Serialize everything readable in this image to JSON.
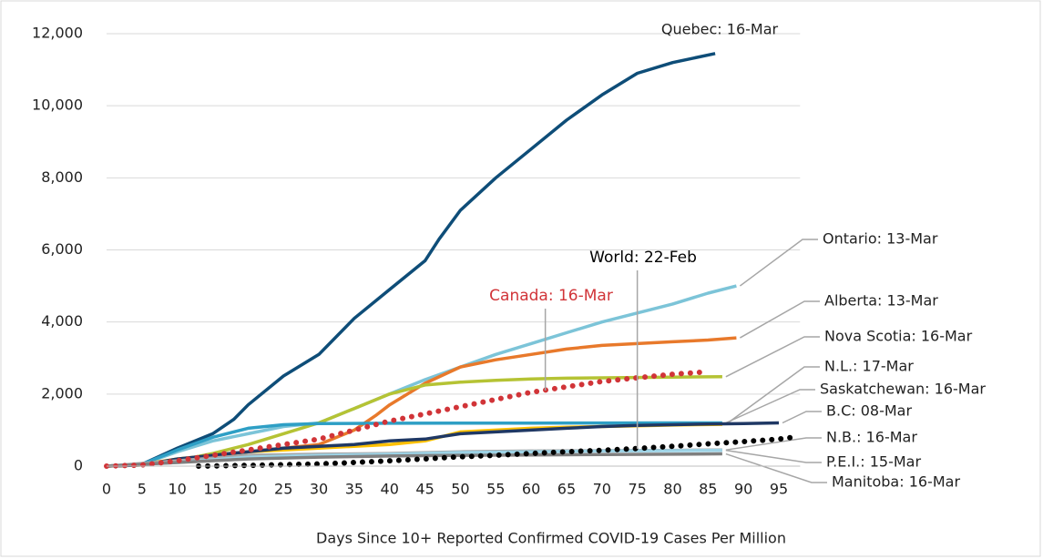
{
  "chart_data": {
    "type": "line",
    "x_label": "Days Since 10+ Reported Confirmed COVID-19 Cases Per Million",
    "xlim": [
      0,
      98
    ],
    "xticks": [
      0,
      5,
      10,
      15,
      20,
      25,
      30,
      35,
      40,
      45,
      50,
      55,
      60,
      65,
      70,
      75,
      80,
      85,
      90,
      95
    ],
    "ylim": [
      0,
      12000
    ],
    "yticks": [
      0,
      {
        "value": 2000,
        "label": "2,000"
      },
      {
        "value": 4000,
        "label": "4,000"
      },
      {
        "value": 6000,
        "label": "6,000"
      },
      {
        "value": 8000,
        "label": "8,000"
      },
      {
        "value": 10000,
        "label": "10,000"
      },
      {
        "value": 12000,
        "label": "12,000"
      }
    ],
    "grid": true,
    "series": [
      {
        "name": "Quebec: 16-Mar",
        "color": "#0e4d78",
        "x": [
          0,
          5,
          10,
          15,
          18,
          20,
          25,
          30,
          35,
          40,
          45,
          47,
          50,
          55,
          60,
          65,
          70,
          75,
          80,
          86
        ],
        "values": [
          0,
          50,
          500,
          900,
          1300,
          1700,
          2500,
          3100,
          4100,
          4900,
          5700,
          6300,
          7100,
          8000,
          8800,
          9600,
          10300,
          10900,
          11200,
          11450
        ]
      },
      {
        "name": "Ontario: 13-Mar",
        "color": "#7cc4d8",
        "x": [
          0,
          5,
          10,
          15,
          20,
          25,
          30,
          35,
          40,
          45,
          50,
          55,
          60,
          65,
          70,
          75,
          80,
          85,
          89
        ],
        "values": [
          0,
          50,
          400,
          700,
          900,
          1100,
          1200,
          1600,
          2000,
          2400,
          2750,
          3100,
          3400,
          3700,
          4000,
          4250,
          4500,
          4800,
          5000
        ]
      },
      {
        "name": "Alberta: 13-Mar",
        "color": "#e8792b",
        "x": [
          0,
          5,
          10,
          15,
          20,
          25,
          30,
          35,
          38,
          40,
          45,
          50,
          55,
          60,
          65,
          70,
          75,
          80,
          85,
          89
        ],
        "values": [
          0,
          30,
          150,
          300,
          400,
          500,
          600,
          1000,
          1400,
          1700,
          2300,
          2750,
          2950,
          3100,
          3250,
          3350,
          3400,
          3450,
          3500,
          3560
        ]
      },
      {
        "name": "Nova Scotia: 16-Mar",
        "color": "#b5c334",
        "x": [
          0,
          5,
          10,
          15,
          20,
          25,
          30,
          35,
          40,
          45,
          50,
          55,
          60,
          65,
          70,
          75,
          80,
          87
        ],
        "values": [
          0,
          30,
          150,
          350,
          600,
          900,
          1200,
          1600,
          2000,
          2250,
          2330,
          2380,
          2420,
          2440,
          2450,
          2460,
          2470,
          2480
        ]
      },
      {
        "name": "N.L.: 17-Mar",
        "color": "#ffc000",
        "x": [
          0,
          5,
          10,
          15,
          20,
          25,
          30,
          35,
          40,
          45,
          50,
          55,
          60,
          65,
          70,
          75,
          80,
          87
        ],
        "values": [
          0,
          50,
          200,
          300,
          400,
          450,
          500,
          550,
          600,
          700,
          950,
          1000,
          1050,
          1080,
          1100,
          1120,
          1140,
          1160
        ]
      },
      {
        "name": "Saskatchewan: 16-Mar",
        "color": "#2e9fc5",
        "x": [
          0,
          5,
          10,
          15,
          20,
          25,
          30,
          40,
          50,
          60,
          70,
          80,
          87
        ],
        "values": [
          0,
          50,
          450,
          800,
          1050,
          1150,
          1180,
          1190,
          1195,
          1195,
          1198,
          1200,
          1200
        ]
      },
      {
        "name": "B.C: 08-Mar",
        "color": "#1f3864",
        "x": [
          0,
          5,
          10,
          15,
          20,
          25,
          30,
          35,
          40,
          45,
          50,
          55,
          60,
          65,
          70,
          75,
          80,
          85,
          90,
          95
        ],
        "values": [
          0,
          30,
          200,
          300,
          400,
          500,
          550,
          600,
          700,
          750,
          900,
          950,
          1000,
          1050,
          1100,
          1130,
          1150,
          1170,
          1180,
          1200
        ]
      },
      {
        "name": "N.B.: 16-Mar",
        "color": "#a5a5a5",
        "x": [
          0,
          10,
          20,
          30,
          40,
          50,
          60,
          70,
          80,
          87
        ],
        "values": [
          0,
          150,
          300,
          330,
          350,
          400,
          420,
          430,
          440,
          450
        ]
      },
      {
        "name": "P.E.I.: 15-Mar",
        "color": "#9dd3e6",
        "x": [
          0,
          10,
          20,
          30,
          40,
          50,
          60,
          70,
          80,
          87
        ],
        "values": [
          0,
          100,
          250,
          300,
          330,
          380,
          400,
          420,
          430,
          440
        ]
      },
      {
        "name": "Manitoba: 16-Mar",
        "color": "#7f7f7f",
        "x": [
          0,
          10,
          20,
          30,
          40,
          50,
          60,
          70,
          80,
          87
        ],
        "values": [
          0,
          100,
          200,
          250,
          280,
          300,
          310,
          320,
          330,
          340
        ]
      },
      {
        "name": "Canada: 16-Mar",
        "color": "#d13438",
        "dotted": true,
        "x": [
          0,
          5,
          10,
          15,
          20,
          25,
          30,
          35,
          40,
          45,
          50,
          55,
          60,
          65,
          70,
          75,
          80,
          85
        ],
        "values": [
          0,
          30,
          150,
          300,
          450,
          600,
          750,
          1000,
          1250,
          1450,
          1650,
          1850,
          2050,
          2200,
          2350,
          2450,
          2550,
          2620
        ]
      },
      {
        "name": "World: 22-Feb",
        "color": "#000000",
        "dotted": true,
        "x": [
          13,
          20,
          25,
          30,
          35,
          40,
          45,
          50,
          55,
          60,
          65,
          70,
          75,
          80,
          85,
          90,
          95,
          97
        ],
        "values": [
          0,
          20,
          40,
          60,
          100,
          150,
          200,
          260,
          300,
          350,
          400,
          440,
          490,
          550,
          620,
          680,
          750,
          800
        ]
      }
    ]
  }
}
